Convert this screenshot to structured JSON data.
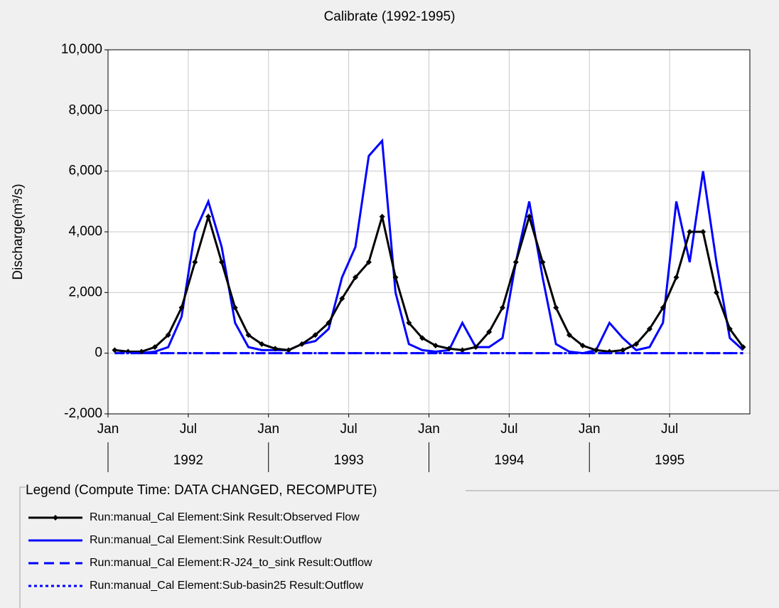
{
  "chart_data": {
    "type": "line",
    "title": "Calibrate (1992-1995)",
    "y_label": "Discharge(m³/s)",
    "x": [
      "1992-01",
      "1992-02",
      "1992-03",
      "1992-04",
      "1992-05",
      "1992-06",
      "1992-07",
      "1992-08",
      "1992-09",
      "1992-10",
      "1992-11",
      "1992-12",
      "1993-01",
      "1993-02",
      "1993-03",
      "1993-04",
      "1993-05",
      "1993-06",
      "1993-07",
      "1993-08",
      "1993-09",
      "1993-10",
      "1993-11",
      "1993-12",
      "1994-01",
      "1994-02",
      "1994-03",
      "1994-04",
      "1994-05",
      "1994-06",
      "1994-07",
      "1994-08",
      "1994-09",
      "1994-10",
      "1994-11",
      "1994-12",
      "1995-01",
      "1995-02",
      "1995-03",
      "1995-04",
      "1995-05",
      "1995-06",
      "1995-07",
      "1995-08",
      "1995-09",
      "1995-10",
      "1995-11",
      "1995-12"
    ],
    "xticks": [
      {
        "value": "1992-01",
        "label": "Jan"
      },
      {
        "value": "1992-07",
        "label": "Jul"
      },
      {
        "value": "1993-01",
        "label": "Jan"
      },
      {
        "value": "1993-07",
        "label": "Jul"
      },
      {
        "value": "1994-01",
        "label": "Jan"
      },
      {
        "value": "1994-07",
        "label": "Jul"
      },
      {
        "value": "1995-01",
        "label": "Jan"
      },
      {
        "value": "1995-07",
        "label": "Jul"
      }
    ],
    "years": [
      "1992",
      "1993",
      "1994",
      "1995"
    ],
    "ylim": [
      -2000,
      10000
    ],
    "yticks": [
      {
        "value": -2000,
        "label": "-2,000"
      },
      0,
      {
        "value": 2000,
        "label": "2,000"
      },
      {
        "value": 4000,
        "label": "4,000"
      },
      {
        "value": 6000,
        "label": "6,000"
      },
      {
        "value": 8000,
        "label": "8,000"
      },
      {
        "value": 10000,
        "label": "10,000"
      }
    ],
    "grid": true,
    "legend_title": "Legend (Compute Time: DATA CHANGED, RECOMPUTE)",
    "series": [
      {
        "name": "Run:manual_Cal Element:Sink Result:Observed Flow",
        "color": "#000000",
        "style": "solid-marker",
        "values": [
          100,
          50,
          50,
          200,
          600,
          1500,
          3000,
          4500,
          3000,
          1500,
          600,
          300,
          150,
          100,
          300,
          600,
          1000,
          1800,
          2500,
          3000,
          4500,
          2500,
          1000,
          500,
          250,
          150,
          100,
          200,
          700,
          1500,
          3000,
          4500,
          3000,
          1500,
          600,
          250,
          100,
          50,
          100,
          300,
          800,
          1500,
          2500,
          4000,
          4000,
          2000,
          800,
          200
        ]
      },
      {
        "name": "Run:manual_Cal Element:Sink Result:Outflow",
        "color": "#0000ff",
        "style": "solid",
        "values": [
          100,
          50,
          0,
          50,
          200,
          1200,
          4000,
          5000,
          3500,
          1000,
          200,
          100,
          100,
          100,
          300,
          400,
          800,
          2500,
          3500,
          6500,
          7000,
          2000,
          300,
          100,
          50,
          100,
          1000,
          200,
          200,
          500,
          3000,
          5000,
          2500,
          300,
          50,
          0,
          100,
          1000,
          500,
          100,
          200,
          1000,
          5000,
          3000,
          6000,
          3000,
          500,
          100
        ]
      },
      {
        "name": "Run:manual_Cal Element:R-J24_to_sink Result:Outflow",
        "color": "#0000ff",
        "style": "dashed",
        "values": [
          0,
          0,
          0,
          0,
          0,
          0,
          0,
          0,
          0,
          0,
          0,
          0,
          0,
          0,
          0,
          0,
          0,
          0,
          0,
          0,
          0,
          0,
          0,
          0,
          0,
          0,
          0,
          0,
          0,
          0,
          0,
          0,
          0,
          0,
          0,
          0,
          0,
          0,
          0,
          0,
          0,
          0,
          0,
          0,
          0,
          0,
          0,
          0
        ]
      },
      {
        "name": "Run:manual_Cal Element:Sub-basin25 Result:Outflow",
        "color": "#0000ff",
        "style": "dotted",
        "values": [
          0,
          0,
          0,
          0,
          0,
          0,
          0,
          0,
          0,
          0,
          0,
          0,
          0,
          0,
          0,
          0,
          0,
          0,
          0,
          0,
          0,
          0,
          0,
          0,
          0,
          0,
          0,
          0,
          0,
          0,
          0,
          0,
          0,
          0,
          0,
          0,
          0,
          0,
          0,
          0,
          0,
          0,
          0,
          0,
          0,
          0,
          0,
          0
        ]
      }
    ]
  }
}
